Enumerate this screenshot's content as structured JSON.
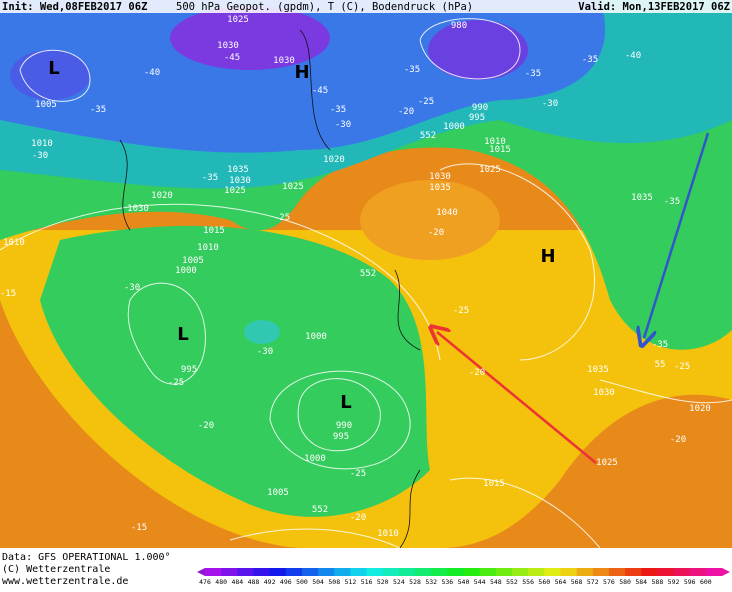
{
  "header": {
    "init": "Init: Wed,08FEB2017 06Z",
    "title": "500 hPa Geopot. (gpdm), T (C), Bodendruck (hPa)",
    "valid": "Valid: Mon,13FEB2017 06Z"
  },
  "footer": {
    "data": "Data: GFS OPERATIONAL 1.000°",
    "copyright": "(C) Wetterzentrale",
    "url": "www.wetterzentrale.de"
  },
  "colorbar": {
    "values": [
      476,
      480,
      484,
      488,
      492,
      496,
      500,
      504,
      508,
      512,
      516,
      520,
      524,
      528,
      532,
      536,
      540,
      544,
      548,
      552,
      556,
      560,
      564,
      568,
      572,
      576,
      580,
      584,
      588,
      592,
      596,
      600
    ]
  },
  "map_labels": [
    "1025",
    "980",
    "1030",
    "-45",
    "1030",
    "H",
    "-40",
    "-35",
    "-35",
    "-35",
    "-40",
    "L",
    "1005",
    "-35",
    "-45",
    "-35",
    "-30",
    "-25",
    "-30",
    "990",
    "995",
    "-20",
    "1000",
    "1010",
    "-30",
    "1015",
    "1010",
    "1020",
    "1025",
    "1035",
    "-35",
    "1030",
    "1025",
    "1025",
    "1030",
    "1035",
    "1020",
    "1030",
    "1035",
    "-35",
    "-25",
    "1040",
    "-20",
    "1015",
    "1010",
    "1010",
    "1005",
    "1000",
    "H",
    "552",
    "-30",
    "-15",
    "L",
    "-25",
    "1000",
    "-30",
    "-35",
    "55",
    "-25",
    "1035",
    "995",
    "-25",
    "-20",
    "1030",
    "L",
    "990",
    "995",
    "1020",
    "-20",
    "-20",
    "1000",
    "1025",
    "-25",
    "1015",
    "1005",
    "552",
    "-20",
    "-15",
    "1010",
    "552"
  ]
}
